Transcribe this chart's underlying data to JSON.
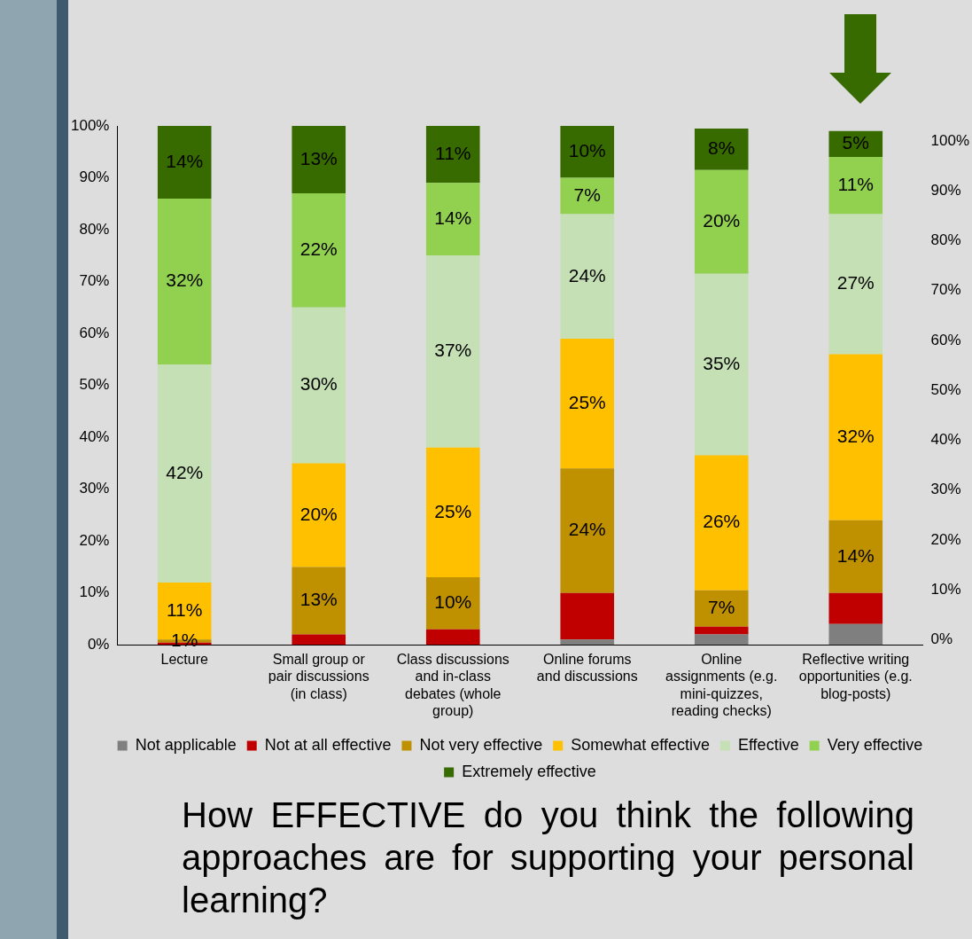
{
  "chart_data": {
    "type": "bar",
    "stacked": true,
    "categories": [
      "Lecture",
      "Small group or pair discussions (in class)",
      "Class discussions and in-class debates (whole group)",
      "Online forums and discussions",
      "Online assignments (e.g. mini-quizzes, reading checks)",
      "Reflective writing opportunities (e.g. blog-posts)"
    ],
    "series": [
      {
        "name": "Not applicable",
        "color": "#7f7f7f",
        "values": [
          0,
          0,
          0,
          1,
          2,
          4
        ],
        "value_labels": [
          null,
          null,
          null,
          null,
          null,
          null
        ]
      },
      {
        "name": "Not at all effective",
        "color": "#c00000",
        "values": [
          0.4,
          2,
          3,
          9,
          1.5,
          6
        ],
        "value_labels": [
          null,
          null,
          null,
          null,
          null,
          null
        ]
      },
      {
        "name": "Not very effective",
        "color": "#bf9000",
        "values": [
          0.6,
          13,
          10,
          24,
          7,
          14
        ],
        "value_labels": [
          "1%",
          "13%",
          "10%",
          "24%",
          "7%",
          "14%"
        ]
      },
      {
        "name": "Somewhat effective",
        "color": "#ffc000",
        "values": [
          11,
          20,
          25,
          25,
          26,
          32
        ],
        "value_labels": [
          "11%",
          "20%",
          "25%",
          "25%",
          "26%",
          "32%"
        ]
      },
      {
        "name": "Effective",
        "color": "#c5e0b4",
        "values": [
          42,
          30,
          37,
          24,
          35,
          27
        ],
        "value_labels": [
          "42%",
          "30%",
          "37%",
          "24%",
          "35%",
          "27%"
        ]
      },
      {
        "name": "Very effective",
        "color": "#92d050",
        "values": [
          32,
          22,
          14,
          7,
          20,
          11
        ],
        "value_labels": [
          "32%",
          "22%",
          "14%",
          "7%",
          "20%",
          "11%"
        ]
      },
      {
        "name": "Extremely effective",
        "color": "#376b00",
        "values": [
          14,
          13,
          11,
          10,
          8,
          5
        ],
        "value_labels": [
          "14%",
          "13%",
          "11%",
          "10%",
          "8%",
          "5%"
        ]
      }
    ],
    "ylim": [
      0,
      100
    ],
    "yticks": [
      {
        "value": 0,
        "label": "0%"
      },
      {
        "value": 10,
        "label": "10%"
      },
      {
        "value": 20,
        "label": "20%"
      },
      {
        "value": 30,
        "label": "30%"
      },
      {
        "value": 40,
        "label": "40%"
      },
      {
        "value": 50,
        "label": "50%"
      },
      {
        "value": 60,
        "label": "60%"
      },
      {
        "value": 70,
        "label": "70%"
      },
      {
        "value": 80,
        "label": "80%"
      },
      {
        "value": 90,
        "label": "90%"
      },
      {
        "value": 100,
        "label": "100%"
      }
    ],
    "y2lim": [
      -1,
      103
    ],
    "y2ticks": [
      {
        "value": 0,
        "label": "0%"
      },
      {
        "value": 10,
        "label": "10%"
      },
      {
        "value": 20,
        "label": "20%"
      },
      {
        "value": 30,
        "label": "30%"
      },
      {
        "value": 40,
        "label": "40%"
      },
      {
        "value": 50,
        "label": "50%"
      },
      {
        "value": 60,
        "label": "60%"
      },
      {
        "value": 70,
        "label": "70%"
      },
      {
        "value": 80,
        "label": "80%"
      },
      {
        "value": 90,
        "label": "90%"
      },
      {
        "value": 100,
        "label": "100%"
      }
    ],
    "grid": false,
    "legend": "bottom",
    "annotations": [
      "How EFFECTIVE do you think the following approaches are for supporting your personal learning?"
    ]
  }
}
